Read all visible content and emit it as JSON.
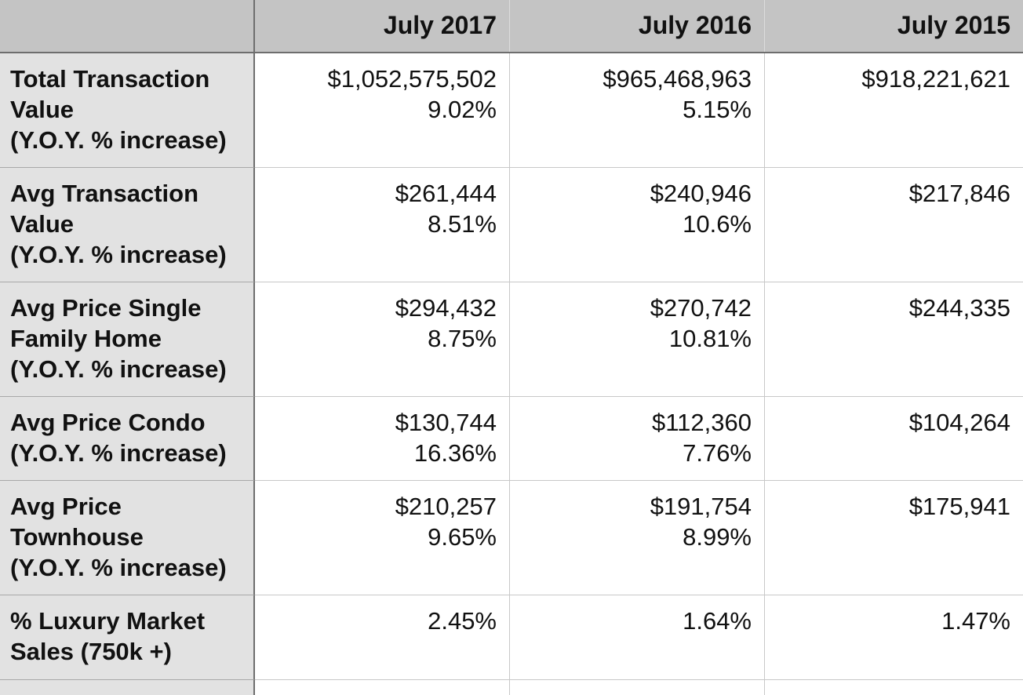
{
  "chart_data": {
    "type": "table",
    "columns": [
      "",
      "July 2017",
      "July 2016",
      "July 2015"
    ],
    "rows": [
      {
        "label": [
          "Total Transaction",
          "Value",
          "(Y.O.Y. % increase)"
        ],
        "cells": [
          [
            "$1,052,575,502",
            "9.02%"
          ],
          [
            "$965,468,963",
            "5.15%"
          ],
          [
            "$918,221,621"
          ]
        ]
      },
      {
        "label": [
          "Avg Transaction",
          "Value",
          "(Y.O.Y. % increase)"
        ],
        "cells": [
          [
            "$261,444",
            "8.51%"
          ],
          [
            "$240,946",
            "10.6%"
          ],
          [
            "$217,846"
          ]
        ]
      },
      {
        "label": [
          "Avg Price Single",
          "Family Home",
          "(Y.O.Y. % increase)"
        ],
        "cells": [
          [
            "$294,432",
            "8.75%"
          ],
          [
            "$270,742",
            "10.81%"
          ],
          [
            "$244,335"
          ]
        ]
      },
      {
        "label": [
          "Avg Price Condo",
          "(Y.O.Y. % increase)"
        ],
        "cells": [
          [
            "$130,744",
            "16.36%"
          ],
          [
            "$112,360",
            "7.76%"
          ],
          [
            "$104,264"
          ]
        ]
      },
      {
        "label": [
          "Avg Price",
          "Townhouse",
          "(Y.O.Y. % increase)"
        ],
        "cells": [
          [
            "$210,257",
            "9.65%"
          ],
          [
            "$191,754",
            "8.99%"
          ],
          [
            "$175,941"
          ]
        ]
      },
      {
        "label": [
          "% Luxury Market",
          "Sales (750k +)"
        ],
        "cells": [
          [
            "2.45%"
          ],
          [
            "1.64%"
          ],
          [
            "1.47%"
          ]
        ]
      }
    ]
  },
  "colors": {
    "header_bg": "#c4c4c4",
    "label_bg": "#e2e2e2",
    "cell_bg": "#ffffff",
    "text": "#111111"
  }
}
